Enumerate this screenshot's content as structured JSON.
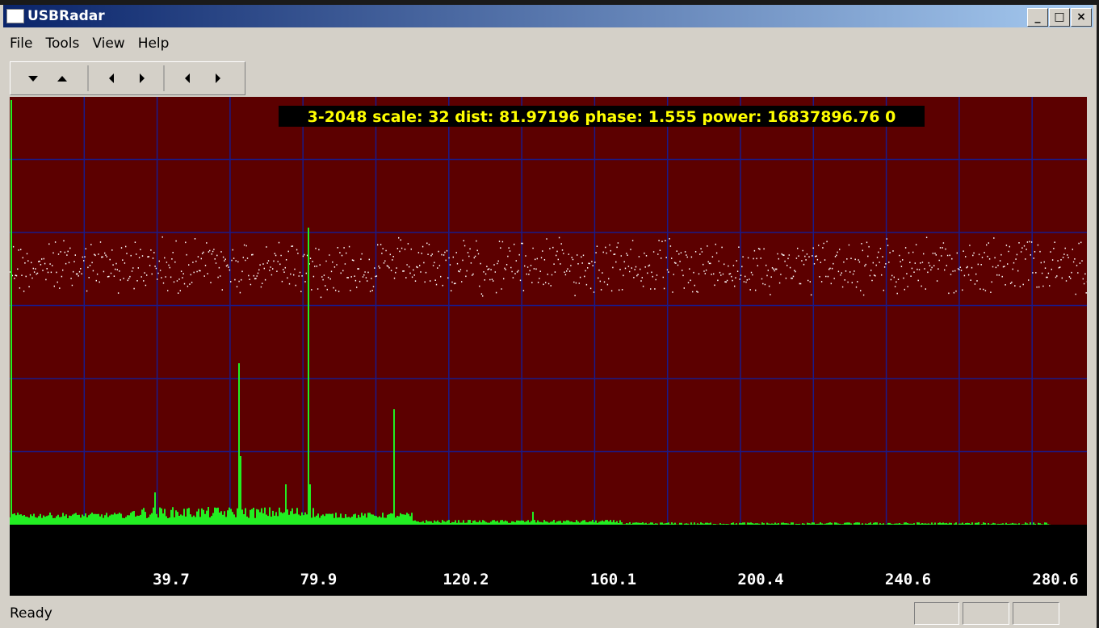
{
  "window": {
    "title": "USBRadar"
  },
  "menu": [
    "File",
    "Tools",
    "View",
    "Help"
  ],
  "plot": {
    "readout": "3-2048 scale: 32 dist: 81.97196 phase: 1.555 power: 16837896.76 0",
    "x_labels": [
      "39.7",
      "79.9",
      "120.2",
      "160.1",
      "200.4",
      "240.6",
      "280.6"
    ]
  },
  "status": {
    "text": "Ready"
  }
}
